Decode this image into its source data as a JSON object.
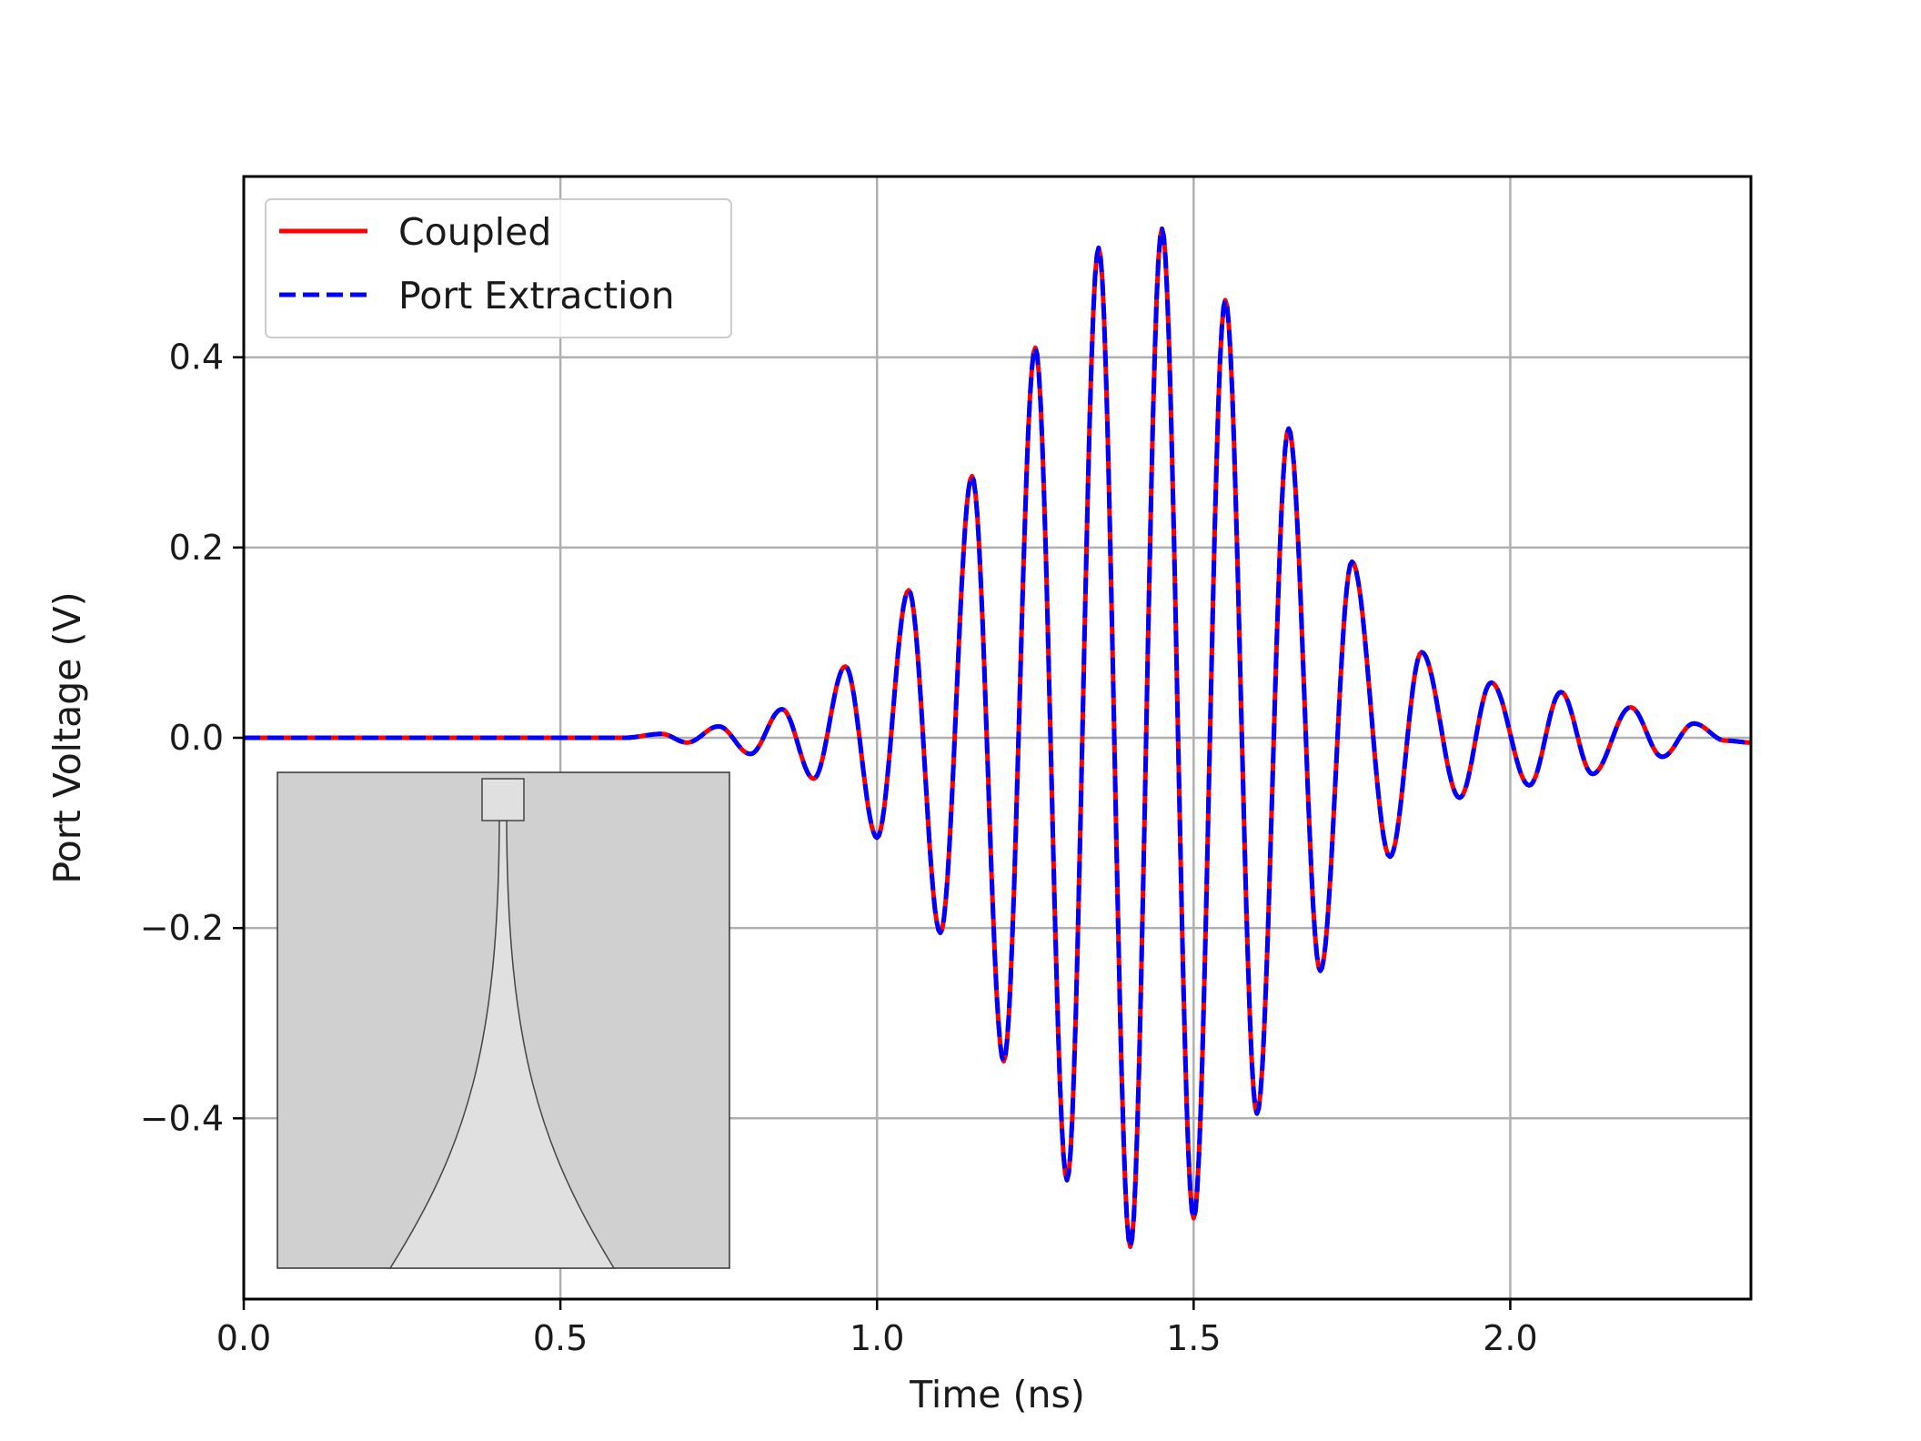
{
  "chart_data": {
    "type": "line",
    "title": "",
    "xlabel": "Time (ns)",
    "ylabel": "Port Voltage (V)",
    "xlim": [
      0.0,
      2.38
    ],
    "ylim": [
      -0.59,
      0.59
    ],
    "grid": true,
    "legend_position": "top-left",
    "x_ticks": [
      {
        "value": 0.0,
        "label": "0.0"
      },
      {
        "value": 0.5,
        "label": "0.5"
      },
      {
        "value": 1.0,
        "label": "1.0"
      },
      {
        "value": 1.5,
        "label": "1.5"
      },
      {
        "value": 2.0,
        "label": "2.0"
      }
    ],
    "y_ticks": [
      {
        "value": 0.4,
        "label": "0.4"
      },
      {
        "value": 0.2,
        "label": "0.2"
      },
      {
        "value": 0.0,
        "label": "0.0"
      },
      {
        "value": -0.2,
        "label": "−0.2"
      },
      {
        "value": -0.4,
        "label": "−0.4"
      }
    ],
    "extrema": [
      [
        0.0,
        0.0
      ],
      [
        0.6,
        0.0
      ],
      [
        0.66,
        0.004
      ],
      [
        0.7,
        -0.005
      ],
      [
        0.75,
        0.012
      ],
      [
        0.8,
        -0.017
      ],
      [
        0.85,
        0.03
      ],
      [
        0.9,
        -0.043
      ],
      [
        0.95,
        0.075
      ],
      [
        1.0,
        -0.105
      ],
      [
        1.05,
        0.155
      ],
      [
        1.1,
        -0.205
      ],
      [
        1.15,
        0.275
      ],
      [
        1.2,
        -0.34
      ],
      [
        1.25,
        0.41
      ],
      [
        1.3,
        -0.465
      ],
      [
        1.35,
        0.515
      ],
      [
        1.4,
        -0.535
      ],
      [
        1.45,
        0.535
      ],
      [
        1.5,
        -0.505
      ],
      [
        1.55,
        0.46
      ],
      [
        1.6,
        -0.395
      ],
      [
        1.65,
        0.325
      ],
      [
        1.7,
        -0.245
      ],
      [
        1.75,
        0.185
      ],
      [
        1.81,
        -0.125
      ],
      [
        1.86,
        0.09
      ],
      [
        1.92,
        -0.063
      ],
      [
        1.97,
        0.058
      ],
      [
        2.03,
        -0.05
      ],
      [
        2.08,
        0.048
      ],
      [
        2.13,
        -0.038
      ],
      [
        2.19,
        0.032
      ],
      [
        2.24,
        -0.02
      ],
      [
        2.29,
        0.015
      ],
      [
        2.34,
        -0.003
      ],
      [
        2.38,
        -0.005
      ]
    ],
    "series": [
      {
        "name": "Coupled",
        "color": "#ff0000",
        "line_style": "solid"
      },
      {
        "name": "Port Extraction",
        "color": "#0000ff",
        "line_style": "dashed"
      }
    ]
  },
  "inset": {
    "description_icon": "tapered-antenna-geometry-icon",
    "background_color": "#d0d0d0",
    "shape_color": "#e0e0e0"
  }
}
